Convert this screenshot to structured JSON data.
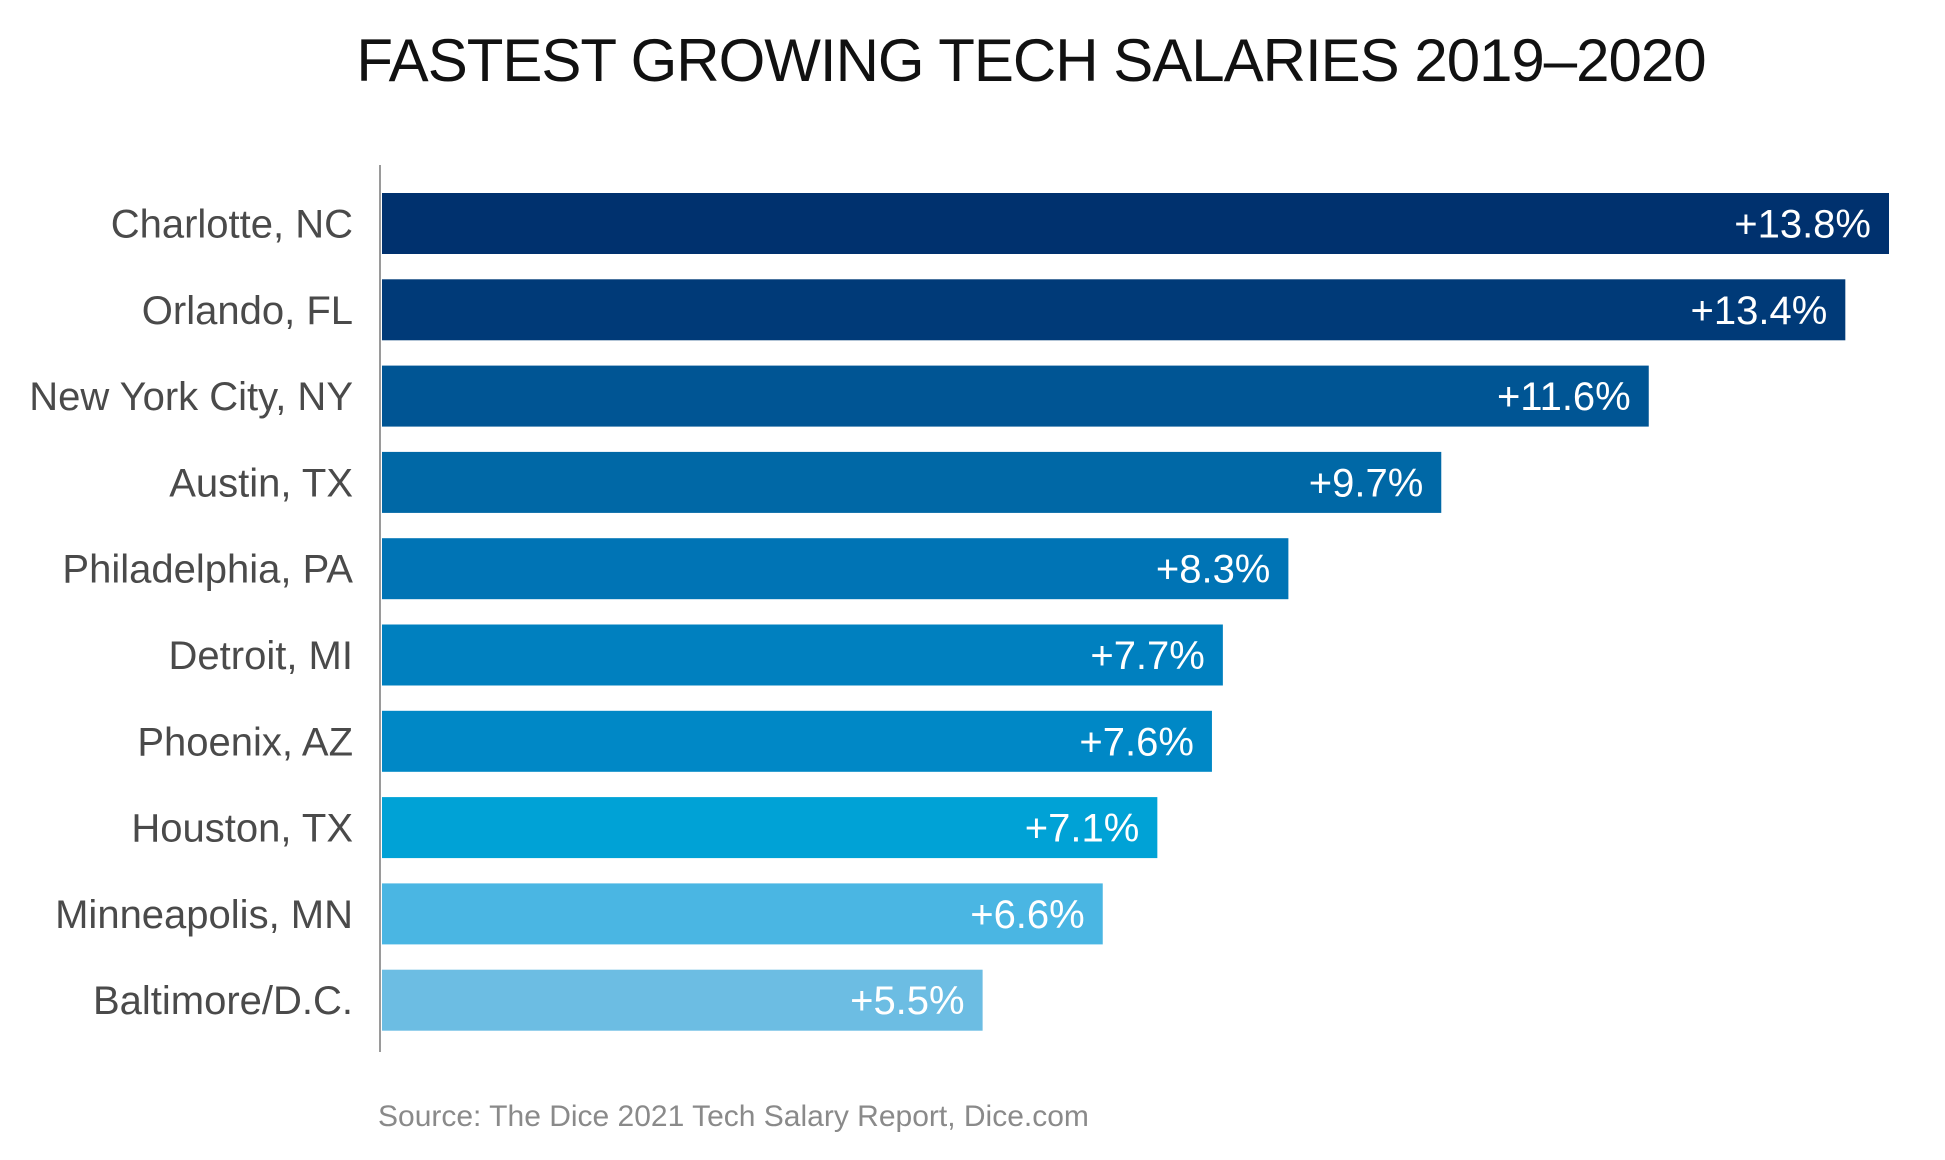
{
  "chart_data": {
    "type": "bar",
    "orientation": "horizontal",
    "title": "FASTEST GROWING TECH SALARIES 2019–2020",
    "categories": [
      "Charlotte, NC",
      "Orlando, FL",
      "New York City, NY",
      "Austin, TX",
      "Philadelphia, PA",
      "Detroit, MI",
      "Phoenix, AZ",
      "Houston, TX",
      "Minneapolis, MN",
      "Baltimore/D.C."
    ],
    "values": [
      13.8,
      13.4,
      11.6,
      9.7,
      8.3,
      7.7,
      7.6,
      7.1,
      6.6,
      5.5
    ],
    "value_labels": [
      "+13.8%",
      "+13.4%",
      "+11.6%",
      "+9.7%",
      "+8.3%",
      "+7.7%",
      "+7.6%",
      "+7.1%",
      "+6.6%",
      "+5.5%"
    ],
    "xlim": [
      0,
      13.8
    ],
    "colors": [
      "#00316e",
      "#003a78",
      "#005594",
      "#0068a6",
      "#0074b5",
      "#0080bf",
      "#0088c6",
      "#00a2d6",
      "#4ab6e3",
      "#6cbde3"
    ],
    "axis_color": "#9a9a9a",
    "grid": false,
    "legend": "none",
    "source": "Source: The Dice 2021 Tech Salary Report, Dice.com"
  }
}
